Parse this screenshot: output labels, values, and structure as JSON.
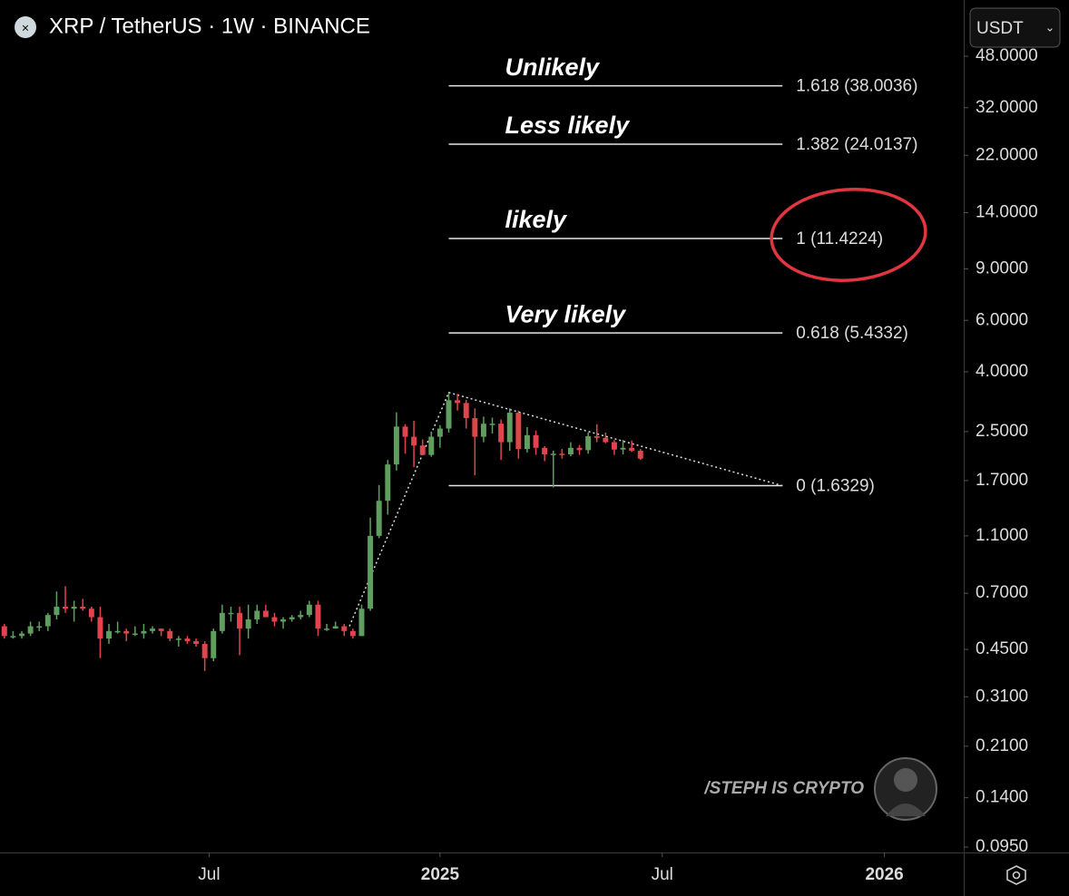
{
  "chart_data": {
    "type": "candlestick",
    "title": "XRP / TetherUS · 1W · BINANCE",
    "currency": "USDT",
    "watermark": "/STEPH IS CRYPTO",
    "log_scale": true,
    "up_color": "#5f9e5f",
    "down_color": "#e0454d",
    "x": [
      0,
      1,
      2,
      3,
      4,
      5,
      6,
      7,
      8,
      9,
      10,
      11,
      12,
      13,
      14,
      15,
      16,
      17,
      18,
      19,
      20,
      21,
      22,
      23,
      24,
      25,
      26,
      27,
      28,
      29,
      30,
      31,
      32,
      33,
      34,
      35,
      36,
      37,
      38,
      39,
      40,
      41,
      42,
      43,
      44,
      45,
      46,
      47,
      48,
      49,
      50,
      51,
      52,
      53,
      54,
      55,
      56,
      57,
      58,
      59,
      60,
      61,
      62,
      63,
      64,
      65,
      66,
      67,
      68,
      69,
      70,
      71,
      72,
      73
    ],
    "open": [
      0.54,
      0.5,
      0.5,
      0.51,
      0.54,
      0.54,
      0.59,
      0.63,
      0.62,
      0.63,
      0.62,
      0.58,
      0.49,
      0.52,
      0.52,
      0.51,
      0.51,
      0.52,
      0.53,
      0.52,
      0.49,
      0.49,
      0.48,
      0.47,
      0.42,
      0.52,
      0.6,
      0.6,
      0.53,
      0.57,
      0.61,
      0.58,
      0.56,
      0.57,
      0.58,
      0.59,
      0.64,
      0.53,
      0.53,
      0.54,
      0.52,
      0.5,
      0.62,
      1.1,
      1.45,
      1.93,
      2.6,
      2.4,
      2.24,
      2.08,
      2.4,
      2.56,
      3.2,
      3.13,
      2.78,
      2.4,
      2.66,
      2.66,
      2.3,
      2.9,
      2.18,
      2.43,
      2.2,
      2.09,
      2.1,
      2.09,
      2.2,
      2.16,
      2.41,
      2.38,
      2.3,
      2.17,
      2.2,
      2.15
    ],
    "high": [
      0.55,
      0.52,
      0.52,
      0.56,
      0.56,
      0.6,
      0.71,
      0.74,
      0.66,
      0.67,
      0.63,
      0.63,
      0.55,
      0.56,
      0.53,
      0.54,
      0.55,
      0.54,
      0.53,
      0.53,
      0.5,
      0.5,
      0.49,
      0.48,
      0.53,
      0.64,
      0.63,
      0.63,
      0.64,
      0.64,
      0.64,
      0.6,
      0.58,
      0.59,
      0.61,
      0.66,
      0.66,
      0.55,
      0.56,
      0.55,
      0.53,
      0.64,
      1.27,
      1.64,
      2.0,
      2.91,
      2.65,
      2.72,
      2.35,
      2.5,
      2.63,
      3.4,
      3.36,
      3.21,
      3.0,
      2.81,
      2.79,
      2.75,
      3.0,
      2.95,
      2.59,
      2.52,
      2.23,
      2.15,
      2.18,
      2.3,
      2.25,
      2.48,
      2.65,
      2.48,
      2.34,
      2.34,
      2.33,
      2.18
    ],
    "low": [
      0.49,
      0.49,
      0.49,
      0.5,
      0.52,
      0.52,
      0.57,
      0.6,
      0.56,
      0.61,
      0.56,
      0.42,
      0.47,
      0.51,
      0.48,
      0.5,
      0.49,
      0.51,
      0.5,
      0.48,
      0.46,
      0.47,
      0.46,
      0.38,
      0.41,
      0.51,
      0.56,
      0.43,
      0.49,
      0.55,
      0.58,
      0.54,
      0.53,
      0.56,
      0.57,
      0.58,
      0.5,
      0.52,
      0.53,
      0.5,
      0.49,
      0.5,
      0.61,
      1.08,
      1.3,
      1.84,
      2.1,
      1.89,
      2.1,
      2.05,
      2.2,
      2.48,
      2.95,
      2.56,
      1.77,
      2.3,
      2.46,
      2.0,
      2.15,
      2.02,
      2.12,
      2.08,
      1.98,
      1.61,
      2.02,
      2.06,
      2.08,
      2.1,
      2.3,
      2.28,
      2.08,
      2.09,
      2.13,
      2.0
    ],
    "close": [
      0.5,
      0.5,
      0.51,
      0.54,
      0.54,
      0.59,
      0.63,
      0.62,
      0.63,
      0.62,
      0.58,
      0.49,
      0.52,
      0.52,
      0.51,
      0.51,
      0.52,
      0.53,
      0.52,
      0.49,
      0.49,
      0.48,
      0.47,
      0.42,
      0.52,
      0.6,
      0.6,
      0.53,
      0.57,
      0.61,
      0.58,
      0.56,
      0.57,
      0.58,
      0.59,
      0.64,
      0.53,
      0.53,
      0.54,
      0.52,
      0.5,
      0.62,
      1.1,
      1.45,
      1.93,
      2.6,
      2.4,
      2.24,
      2.08,
      2.4,
      2.56,
      3.2,
      3.13,
      2.78,
      2.4,
      2.66,
      2.66,
      2.3,
      2.9,
      2.18,
      2.43,
      2.2,
      2.09,
      2.1,
      2.09,
      2.2,
      2.16,
      2.41,
      2.38,
      2.3,
      2.17,
      2.2,
      2.15,
      2.02
    ],
    "xlim": [
      -0.5,
      110.1
    ],
    "xticks": [
      {
        "value": 23.5,
        "label": "Jul"
      },
      {
        "value": 50,
        "label": "2025"
      },
      {
        "value": 75.5,
        "label": "Jul"
      },
      {
        "value": 101,
        "label": "2026"
      }
    ],
    "ylim": [
      0.091,
      74.7
    ],
    "yticks": [
      {
        "value": 48,
        "label": "48.0000"
      },
      {
        "value": 32,
        "label": "32.0000"
      },
      {
        "value": 22,
        "label": "22.0000"
      },
      {
        "value": 14,
        "label": "14.0000"
      },
      {
        "value": 9,
        "label": "9.0000"
      },
      {
        "value": 6,
        "label": "6.0000"
      },
      {
        "value": 4,
        "label": "4.0000"
      },
      {
        "value": 2.5,
        "label": "2.5000"
      },
      {
        "value": 1.7,
        "label": "1.7000"
      },
      {
        "value": 1.1,
        "label": "1.1000"
      },
      {
        "value": 0.7,
        "label": "0.7000"
      },
      {
        "value": 0.45,
        "label": "0.4500"
      },
      {
        "value": 0.31,
        "label": "0.3100"
      },
      {
        "value": 0.21,
        "label": "0.2100"
      },
      {
        "value": 0.14,
        "label": "0.1400"
      },
      {
        "value": 0.095,
        "label": "0.0950"
      }
    ],
    "fib_xrange": [
      51,
      89.3
    ],
    "fib_levels": [
      {
        "value": 38.0036,
        "label": "1.618 (38.0036)",
        "annotation": "Unlikely"
      },
      {
        "value": 24.0137,
        "label": "1.382 (24.0137)",
        "annotation": "Less likely"
      },
      {
        "value": 11.4224,
        "label": "1 (11.4224)",
        "annotation": "likely"
      },
      {
        "value": 5.4332,
        "label": "0.618 (5.4332)",
        "annotation": "Very likely"
      },
      {
        "value": 1.6329,
        "label": "0 (1.6329)"
      }
    ],
    "trendline": {
      "x": [
        39.6,
        51,
        89.3
      ],
      "y": [
        0.54,
        3.4,
        1.6329
      ]
    }
  }
}
